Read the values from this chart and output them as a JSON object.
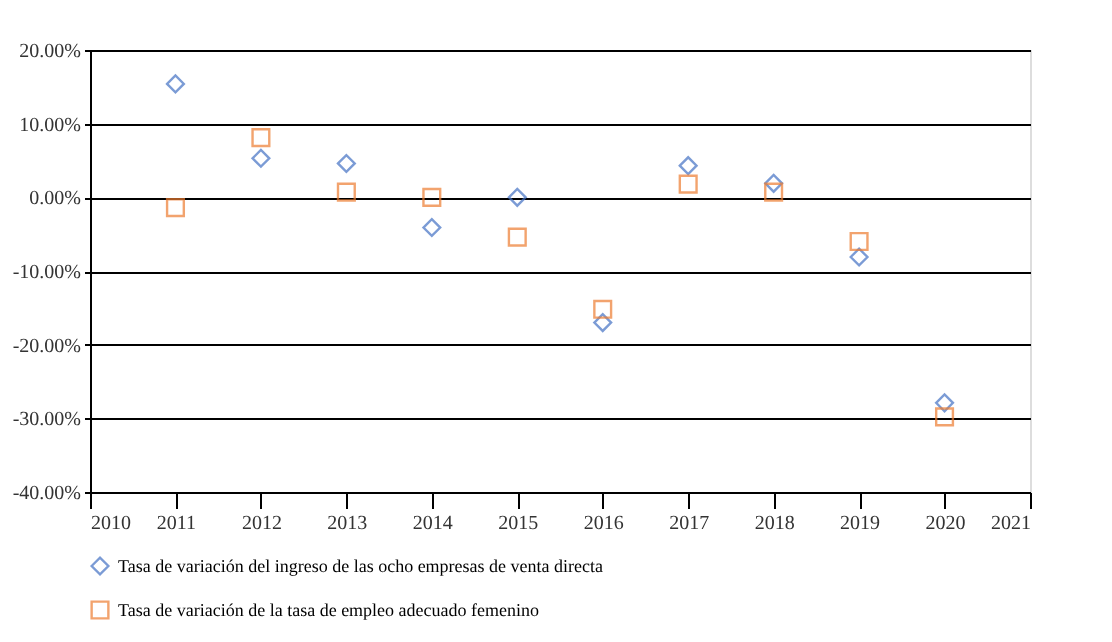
{
  "chart_data": {
    "type": "scatter",
    "x": [
      2011,
      2012,
      2013,
      2014,
      2015,
      2016,
      2017,
      2018,
      2019,
      2020
    ],
    "series": [
      {
        "name": "Tasa de variación del ingreso de las ocho empresas de venta directa",
        "color": "#4472c4",
        "marker": "diamond",
        "values": [
          15.4,
          5.3,
          4.6,
          -4.1,
          0.0,
          -17.0,
          4.3,
          1.9,
          -8.1,
          -27.9
        ]
      },
      {
        "name": "Tasa de variación de la tasa de empleo adecuado femenino",
        "color": "#ed7d31",
        "marker": "square",
        "values": [
          -1.4,
          8.1,
          0.7,
          0.0,
          -5.4,
          -15.2,
          1.8,
          0.7,
          -6.0,
          -29.8
        ]
      }
    ],
    "xlim": [
      2010,
      2021
    ],
    "xticks": [
      2010,
      2011,
      2012,
      2013,
      2014,
      2015,
      2016,
      2017,
      2018,
      2019,
      2020,
      2021
    ],
    "ylim": [
      -40,
      20
    ],
    "yticks": [
      {
        "value": -40,
        "label": "-40.00%"
      },
      {
        "value": -30,
        "label": "-30.00%"
      },
      {
        "value": -20,
        "label": "-20.00%"
      },
      {
        "value": -10,
        "label": "-10.00%"
      },
      {
        "value": 0,
        "label": "0.00%"
      },
      {
        "value": 10,
        "label": "10.00%"
      },
      {
        "value": 20,
        "label": "20.00%"
      }
    ],
    "grid": "y",
    "legend": "bottom"
  }
}
